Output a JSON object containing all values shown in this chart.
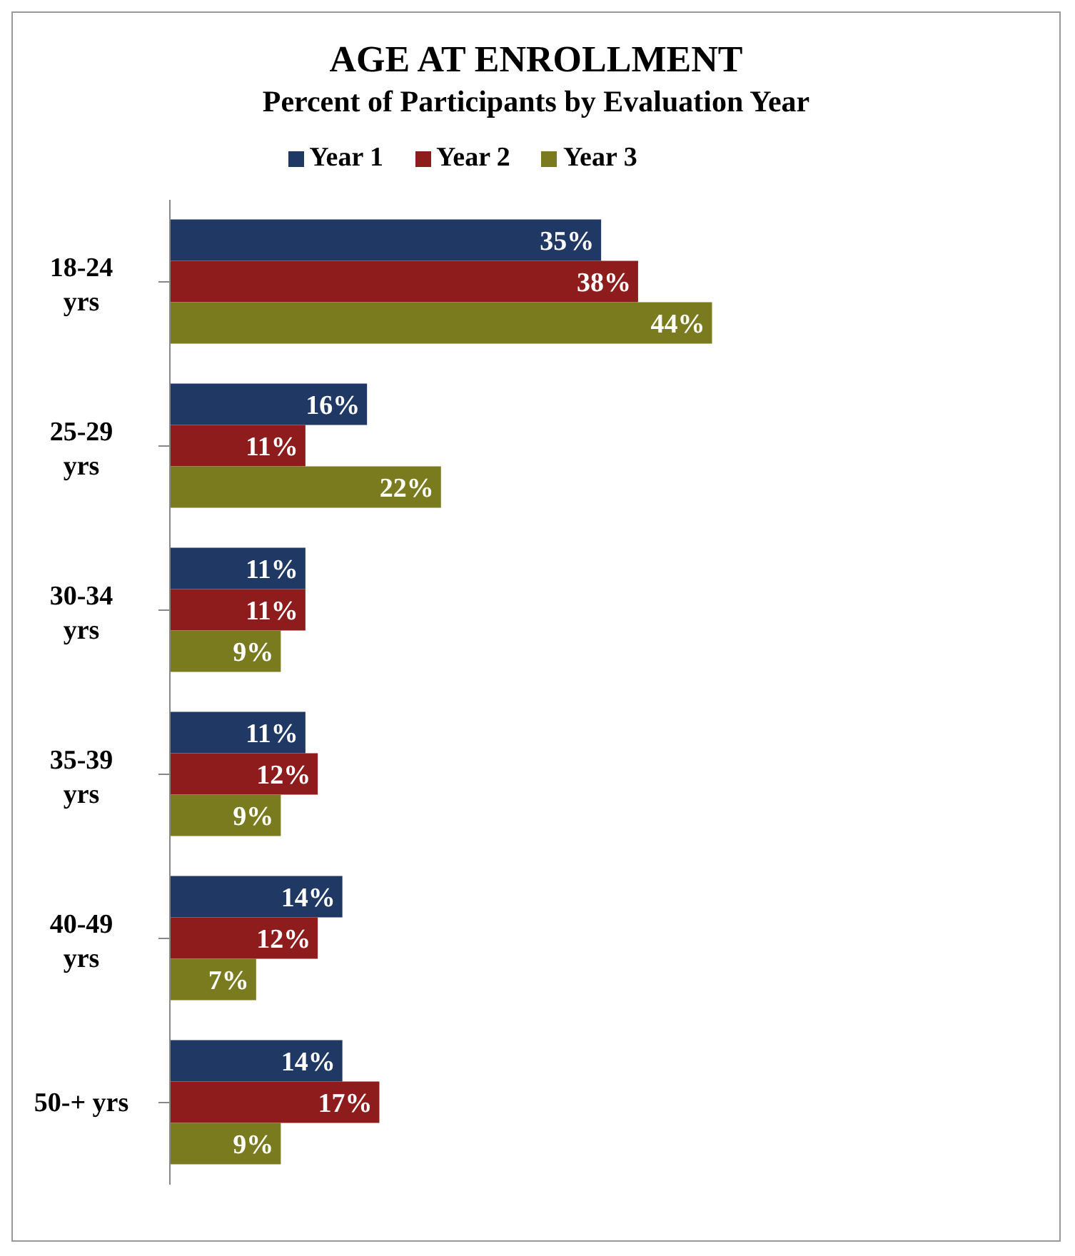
{
  "chart_data": {
    "type": "bar",
    "orientation": "horizontal",
    "title": "AGE AT ENROLLMENT",
    "subtitle": "Percent of Participants by Evaluation Year",
    "categories": [
      "18-24 yrs",
      "25-29 yrs",
      "30-34 yrs",
      "35-39 yrs",
      "40-49 yrs",
      "50-+ yrs"
    ],
    "series": [
      {
        "name": "Year 1",
        "color": "#1f3864",
        "values": [
          35,
          16,
          11,
          11,
          14,
          14
        ],
        "value_labels": [
          "35%",
          "16%",
          "11%",
          "11%",
          "14%",
          "14%"
        ]
      },
      {
        "name": "Year 2",
        "color": "#8e1c1c",
        "values": [
          38,
          11,
          11,
          12,
          12,
          17
        ],
        "value_labels": [
          "38%",
          "11%",
          "11%",
          "12%",
          "12%",
          "17%"
        ]
      },
      {
        "name": "Year 3",
        "color": "#7a7a1e",
        "values": [
          44,
          22,
          9,
          9,
          7,
          9
        ],
        "value_labels": [
          "44%",
          "22%",
          "9%",
          "9%",
          "7%",
          "9%"
        ]
      }
    ],
    "tick_labels": "y",
    "legend": "top"
  }
}
